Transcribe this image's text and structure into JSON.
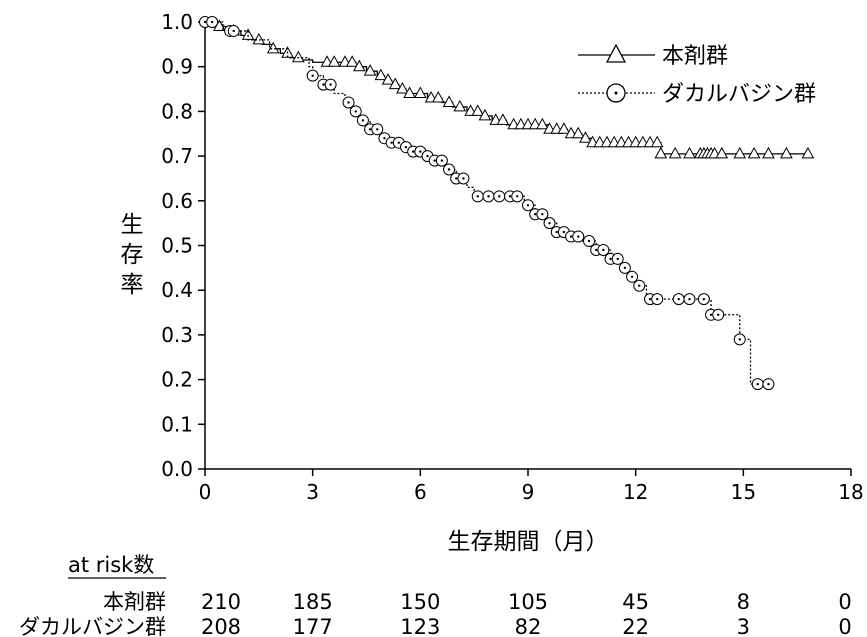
{
  "chart_data": {
    "type": "line",
    "subtype": "kaplan-meier",
    "xlabel": "生存期間（月）",
    "ylabel": "生存率",
    "xlim": [
      0,
      18
    ],
    "ylim": [
      0,
      1.0
    ],
    "xticks": [
      0,
      3,
      6,
      9,
      12,
      15,
      18
    ],
    "xtick_labels": [
      "0",
      "3",
      "6",
      "9",
      "12",
      "15",
      "18"
    ],
    "yticks": [
      0,
      0.1,
      0.2,
      0.3,
      0.4,
      0.5,
      0.6,
      0.7,
      0.8,
      0.9,
      1.0
    ],
    "ytick_labels": [
      "0.0",
      "0.1",
      "0.2",
      "0.3",
      "0.4",
      "0.5",
      "0.6",
      "0.7",
      "0.8",
      "0.9",
      "1.0"
    ],
    "grid": false,
    "legend_position": "top-right",
    "series": [
      {
        "name": "本剤群",
        "line_style": "solid",
        "marker": "triangle",
        "color": "#000000",
        "steps": [
          [
            0,
            1.0
          ],
          [
            0.4,
            0.99
          ],
          [
            0.7,
            0.98
          ],
          [
            1.0,
            0.97
          ],
          [
            1.3,
            0.96
          ],
          [
            1.6,
            0.95
          ],
          [
            1.9,
            0.94
          ],
          [
            2.1,
            0.93
          ],
          [
            2.4,
            0.92
          ],
          [
            2.7,
            0.915
          ],
          [
            3.0,
            0.91
          ],
          [
            4.0,
            0.91
          ],
          [
            4.2,
            0.9
          ],
          [
            4.5,
            0.89
          ],
          [
            4.8,
            0.88
          ],
          [
            5.0,
            0.87
          ],
          [
            5.2,
            0.86
          ],
          [
            5.4,
            0.85
          ],
          [
            5.6,
            0.84
          ],
          [
            6.2,
            0.83
          ],
          [
            6.6,
            0.82
          ],
          [
            6.9,
            0.81
          ],
          [
            7.3,
            0.8
          ],
          [
            7.7,
            0.79
          ],
          [
            8.0,
            0.78
          ],
          [
            8.4,
            0.77
          ],
          [
            9.6,
            0.76
          ],
          [
            10.1,
            0.75
          ],
          [
            10.5,
            0.74
          ],
          [
            10.8,
            0.73
          ],
          [
            12.7,
            0.705
          ],
          [
            16.8,
            0.705
          ]
        ],
        "censor_times": [
          0.4,
          0.8,
          1.2,
          1.5,
          1.9,
          2.3,
          2.6,
          3.4,
          3.6,
          3.9,
          4.1,
          4.3,
          4.6,
          4.9,
          5.1,
          5.3,
          5.5,
          5.7,
          6.0,
          6.3,
          6.5,
          6.8,
          7.1,
          7.4,
          7.6,
          7.8,
          8.1,
          8.3,
          8.6,
          8.8,
          9.0,
          9.2,
          9.4,
          9.6,
          9.8,
          10.0,
          10.2,
          10.4,
          10.6,
          10.8,
          11.0,
          11.2,
          11.4,
          11.6,
          11.8,
          12.0,
          12.2,
          12.4,
          12.6,
          12.7,
          13.1,
          13.5,
          13.8,
          13.9,
          14.0,
          14.1,
          14.2,
          14.4,
          14.9,
          15.3,
          15.7,
          16.2,
          16.8
        ]
      },
      {
        "name": "ダカルバジン群",
        "line_style": "dotted",
        "marker": "circle",
        "color": "#000000",
        "steps": [
          [
            0,
            1.0
          ],
          [
            0.5,
            0.98
          ],
          [
            1.2,
            0.96
          ],
          [
            1.8,
            0.94
          ],
          [
            2.3,
            0.92
          ],
          [
            2.9,
            0.9
          ],
          [
            3.0,
            0.88
          ],
          [
            3.3,
            0.86
          ],
          [
            3.6,
            0.84
          ],
          [
            3.9,
            0.82
          ],
          [
            4.1,
            0.8
          ],
          [
            4.3,
            0.78
          ],
          [
            4.6,
            0.76
          ],
          [
            4.9,
            0.74
          ],
          [
            5.2,
            0.73
          ],
          [
            5.5,
            0.72
          ],
          [
            5.8,
            0.71
          ],
          [
            6.1,
            0.7
          ],
          [
            6.4,
            0.69
          ],
          [
            6.7,
            0.67
          ],
          [
            7.0,
            0.65
          ],
          [
            7.3,
            0.63
          ],
          [
            7.5,
            0.61
          ],
          [
            8.9,
            0.59
          ],
          [
            9.2,
            0.57
          ],
          [
            9.5,
            0.55
          ],
          [
            9.8,
            0.53
          ],
          [
            10.2,
            0.52
          ],
          [
            10.5,
            0.51
          ],
          [
            10.9,
            0.49
          ],
          [
            11.3,
            0.47
          ],
          [
            11.6,
            0.45
          ],
          [
            11.8,
            0.43
          ],
          [
            12.0,
            0.41
          ],
          [
            12.3,
            0.38
          ],
          [
            14.1,
            0.345
          ],
          [
            14.9,
            0.29
          ],
          [
            15.2,
            0.19
          ],
          [
            15.7,
            0.19
          ]
        ],
        "censor_times": [
          0,
          0.2,
          0.7,
          0.8,
          3.0,
          3.3,
          3.5,
          4.0,
          4.2,
          4.4,
          4.6,
          4.8,
          5.0,
          5.2,
          5.4,
          5.6,
          5.8,
          6.0,
          6.2,
          6.4,
          6.6,
          6.8,
          7.0,
          7.2,
          7.6,
          7.9,
          8.2,
          8.5,
          8.7,
          9.0,
          9.2,
          9.4,
          9.6,
          9.8,
          10.0,
          10.2,
          10.4,
          10.7,
          10.9,
          11.1,
          11.3,
          11.5,
          11.7,
          11.9,
          12.1,
          12.4,
          12.6,
          13.2,
          13.5,
          13.9,
          14.1,
          14.3,
          14.9,
          15.4,
          15.7
        ]
      }
    ],
    "risk_table": {
      "title": "at risk数",
      "times": [
        0,
        3,
        6,
        9,
        12,
        15,
        18
      ],
      "rows": [
        {
          "label": "本剤群",
          "values": [
            "210",
            "185",
            "150",
            "105",
            "45",
            "8",
            "0"
          ]
        },
        {
          "label": "ダカルバジン群",
          "values": [
            "208",
            "177",
            "123",
            "82",
            "22",
            "3",
            "0"
          ]
        }
      ]
    }
  }
}
